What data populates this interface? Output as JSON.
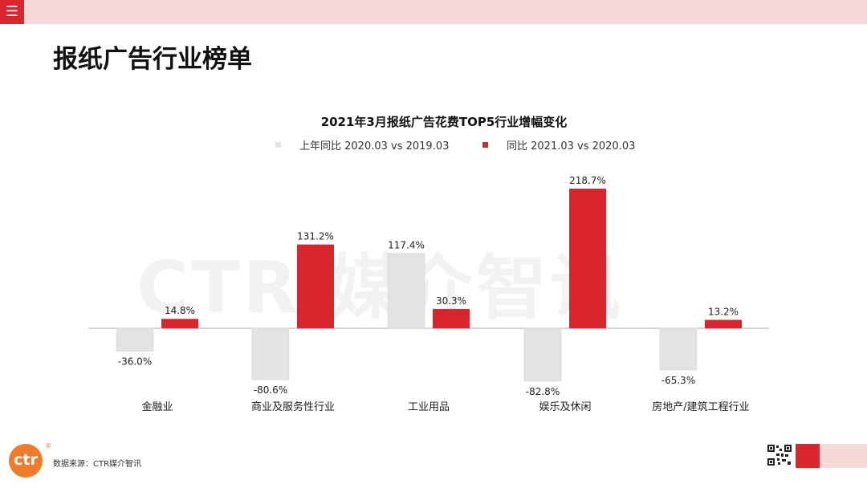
{
  "page": {
    "title": "报纸广告行业榜单",
    "source": "数据来源：CTR媒介智讯",
    "watermark": "CTR 媒介智讯",
    "logo_text": "ctr",
    "logo_mark": "®"
  },
  "colors": {
    "accent": "#d9252b",
    "pink": "#f6dada",
    "grey_bar": "#e3e3e3"
  },
  "icons": {
    "menu": "menu-icon",
    "qr": "qr-code-icon"
  },
  "chart_data": {
    "type": "bar",
    "title": "2021年3月报纸广告花费TOP5行业增幅变化",
    "categories": [
      "金融业",
      "商业及服务性行业",
      "工业用品",
      "娱乐及休闲",
      "房地产/建筑工程行业"
    ],
    "series": [
      {
        "name": "上年同比 2020.03 vs 2019.03",
        "color": "#e3e3e3",
        "values": [
          -36.0,
          -80.6,
          117.4,
          -82.8,
          -65.3
        ],
        "labels": [
          "-36.0%",
          "-80.6%",
          "117.4%",
          "-82.8%",
          "-65.3%"
        ]
      },
      {
        "name": "同比 2021.03 vs 2020.03",
        "color": "#d9252b",
        "values": [
          14.8,
          131.2,
          30.3,
          218.7,
          13.2
        ],
        "labels": [
          "14.8%",
          "131.2%",
          "30.3%",
          "218.7%",
          "13.2%"
        ]
      }
    ],
    "legend": "top-center",
    "grid": false
  }
}
